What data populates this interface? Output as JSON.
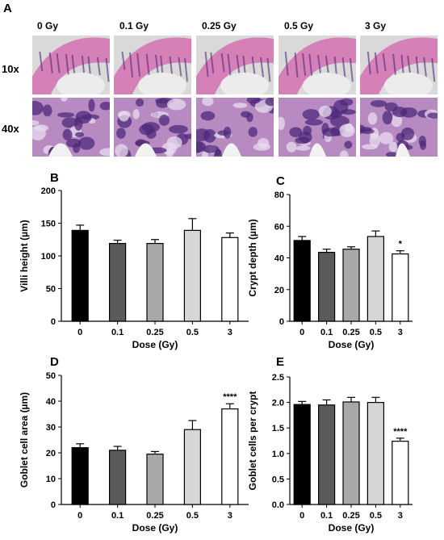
{
  "figure_panel_labels": {
    "A": "A",
    "B": "B",
    "C": "C",
    "D": "D",
    "E": "E"
  },
  "micrographs": {
    "columns": [
      "0 Gy",
      "0.1 Gy",
      "0.25 Gy",
      "0.5 Gy",
      "3 Gy"
    ],
    "rows": [
      "10x",
      "40x"
    ]
  },
  "colors": {
    "tissue_pink": "#d680b8",
    "nuclei": "#4e2a7a",
    "background": "#cfcfcf"
  },
  "chart_data": [
    {
      "panel": "B",
      "type": "bar",
      "categories": [
        "0",
        "0.1",
        "0.25",
        "0.5",
        "3"
      ],
      "values": [
        139,
        119,
        119,
        139,
        128
      ],
      "errors": [
        8,
        5,
        6,
        18,
        7
      ],
      "bar_colors": [
        "#000000",
        "#5a5a5a",
        "#a8a8a8",
        "#d6d6d6",
        "#ffffff"
      ],
      "annotations": [
        "",
        "",
        "",
        "",
        ""
      ],
      "xlabel": "Dose (Gy)",
      "ylabel": "Villi height (µm)",
      "ylim": [
        0,
        200
      ],
      "yticks": [
        0,
        50,
        100,
        150,
        200
      ],
      "yticklabels": [
        "0",
        "50",
        "100",
        "150",
        "200"
      ]
    },
    {
      "panel": "C",
      "type": "bar",
      "categories": [
        "0",
        "0.1",
        "0.25",
        "0.5",
        "3"
      ],
      "values": [
        51,
        43.5,
        45.5,
        53.5,
        42.5
      ],
      "errors": [
        2.5,
        2,
        1.5,
        3.5,
        2
      ],
      "bar_colors": [
        "#000000",
        "#5a5a5a",
        "#a8a8a8",
        "#d6d6d6",
        "#ffffff"
      ],
      "annotations": [
        "",
        "",
        "",
        "",
        "*"
      ],
      "xlabel": "Dose (Gy)",
      "ylabel": "Crypt depth (µm)",
      "ylim": [
        0,
        80
      ],
      "yticks": [
        0,
        20,
        40,
        60,
        80
      ],
      "yticklabels": [
        "0",
        "20",
        "40",
        "60",
        "80"
      ]
    },
    {
      "panel": "D",
      "type": "bar",
      "categories": [
        "0",
        "0.1",
        "0.25",
        "0.5",
        "3"
      ],
      "values": [
        22,
        21,
        19.5,
        29,
        37
      ],
      "errors": [
        1.5,
        1.5,
        1,
        3.5,
        2
      ],
      "bar_colors": [
        "#000000",
        "#5a5a5a",
        "#a8a8a8",
        "#d6d6d6",
        "#ffffff"
      ],
      "annotations": [
        "",
        "",
        "",
        "",
        "****"
      ],
      "xlabel": "Dose (Gy)",
      "ylabel": "Goblet cell area (µm)",
      "ylim": [
        0,
        50
      ],
      "yticks": [
        0,
        10,
        20,
        30,
        40,
        50
      ],
      "yticklabels": [
        "0",
        "10",
        "20",
        "30",
        "40",
        "50"
      ]
    },
    {
      "panel": "E",
      "type": "bar",
      "categories": [
        "0",
        "0.1",
        "0.25",
        "0.5",
        "3"
      ],
      "values": [
        1.96,
        1.95,
        2.01,
        2.0,
        1.24
      ],
      "errors": [
        0.06,
        0.1,
        0.09,
        0.1,
        0.06
      ],
      "bar_colors": [
        "#000000",
        "#5a5a5a",
        "#a8a8a8",
        "#d6d6d6",
        "#ffffff"
      ],
      "annotations": [
        "",
        "",
        "",
        "",
        "****"
      ],
      "xlabel": "Dose (Gy)",
      "ylabel": "Goblet cells per crypt",
      "ylim": [
        0,
        2.5
      ],
      "yticks": [
        0,
        0.5,
        1,
        1.5,
        2,
        2.5
      ],
      "yticklabels": [
        "0.0",
        "0.5",
        "1.0",
        "1.5",
        "2.0",
        "2.5"
      ]
    }
  ]
}
